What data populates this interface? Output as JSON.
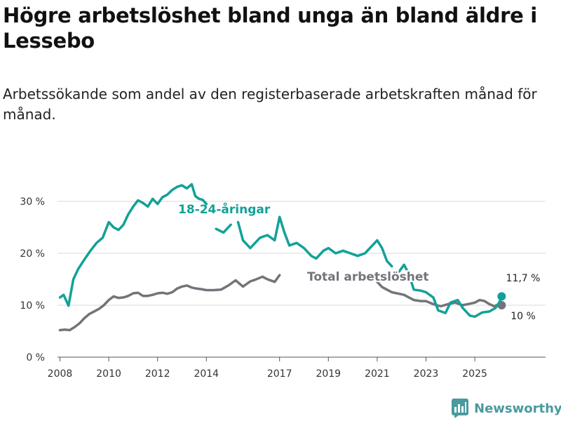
{
  "title": "Högre arbetslöshet bland unga än bland äldre i Lessebo",
  "subtitle": "Arbetssökande som andel av den registerbaserade arbetskraften månad för månad.",
  "brand": "Newsworthy",
  "colors": {
    "youth": "#12a198",
    "total": "#74737a",
    "grid": "#d9d9d9",
    "axis": "#555555",
    "brand": "#4a9a9e"
  },
  "chart_data": {
    "type": "line",
    "title": "Högre arbetslöshet bland unga än bland äldre i Lessebo",
    "subtitle": "Arbetssökande som andel av den registerbaserade arbetskraften månad för månad.",
    "xlabel": "",
    "ylabel": "",
    "xlim": [
      2007.9,
      2027.9
    ],
    "ylim": [
      0,
      35
    ],
    "y_ticks": [
      0,
      10,
      20,
      30
    ],
    "y_tick_labels": [
      "0 %",
      "10 %",
      "20 %",
      "30 %"
    ],
    "x_ticks": [
      2008,
      2010,
      2012,
      2014,
      2017,
      2019,
      2021,
      2023,
      2025
    ],
    "x_tick_labels": [
      "2008",
      "2010",
      "2012",
      "2014",
      "2017",
      "2019",
      "2021",
      "2023",
      "2025"
    ],
    "grid": true,
    "series": [
      {
        "name": "18-24-åringar",
        "label": "18-24-åringar",
        "end_label": "11,7 %",
        "end_value": 11.7,
        "points": [
          [
            2008.0,
            11.5
          ],
          [
            2008.15,
            12.0
          ],
          [
            2008.35,
            9.9
          ],
          [
            2008.55,
            15.0
          ],
          [
            2008.75,
            17.0
          ],
          [
            2009.0,
            18.8
          ],
          [
            2009.25,
            20.5
          ],
          [
            2009.5,
            22.0
          ],
          [
            2009.75,
            23.0
          ],
          [
            2010.0,
            26.0
          ],
          [
            2010.2,
            25.0
          ],
          [
            2010.4,
            24.5
          ],
          [
            2010.6,
            25.5
          ],
          [
            2010.8,
            27.5
          ],
          [
            2011.0,
            29.0
          ],
          [
            2011.2,
            30.2
          ],
          [
            2011.4,
            29.7
          ],
          [
            2011.6,
            29.0
          ],
          [
            2011.8,
            30.5
          ],
          [
            2012.0,
            29.5
          ],
          [
            2012.2,
            30.8
          ],
          [
            2012.4,
            31.3
          ],
          [
            2012.6,
            32.2
          ],
          [
            2012.8,
            32.8
          ],
          [
            2013.0,
            33.1
          ],
          [
            2013.2,
            32.5
          ],
          [
            2013.4,
            33.3
          ],
          [
            2013.55,
            31.0
          ],
          [
            2013.7,
            30.5
          ],
          [
            2013.85,
            30.3
          ],
          [
            2014.0,
            29.5
          ],
          [
            null,
            null
          ],
          [
            2014.4,
            24.7
          ],
          [
            2014.7,
            24.0
          ],
          [
            2015.0,
            25.5
          ],
          [
            null,
            null
          ],
          [
            2015.3,
            26.0
          ],
          [
            2015.5,
            22.5
          ],
          [
            2015.8,
            21.0
          ],
          [
            2016.2,
            23.0
          ],
          [
            2016.5,
            23.5
          ],
          [
            2016.8,
            22.5
          ],
          [
            2017.0,
            27.0
          ],
          [
            2017.2,
            24.0
          ],
          [
            2017.4,
            21.5
          ],
          [
            2017.7,
            22.0
          ],
          [
            2018.0,
            21.0
          ],
          [
            2018.3,
            19.5
          ],
          [
            2018.5,
            19.0
          ],
          [
            2018.8,
            20.5
          ],
          [
            2019.0,
            21.0
          ],
          [
            2019.3,
            20.0
          ],
          [
            2019.6,
            20.5
          ],
          [
            2019.9,
            20.0
          ],
          [
            2020.2,
            19.5
          ],
          [
            2020.5,
            20.0
          ],
          [
            2020.8,
            21.5
          ],
          [
            2021.0,
            22.5
          ],
          [
            2021.2,
            21.0
          ],
          [
            2021.4,
            18.5
          ],
          [
            2021.6,
            17.5
          ],
          [
            null,
            null
          ],
          [
            2021.9,
            16.5
          ],
          [
            2022.1,
            17.8
          ],
          [
            2022.3,
            16.0
          ],
          [
            2022.5,
            13.0
          ],
          [
            2022.8,
            12.8
          ],
          [
            2023.0,
            12.5
          ],
          [
            2023.3,
            11.5
          ],
          [
            2023.5,
            9.0
          ],
          [
            2023.8,
            8.5
          ],
          [
            2024.0,
            10.5
          ],
          [
            2024.3,
            11.0
          ],
          [
            2024.5,
            9.5
          ],
          [
            2024.8,
            8.0
          ],
          [
            2025.0,
            7.8
          ],
          [
            2025.3,
            8.6
          ],
          [
            2025.6,
            8.8
          ],
          [
            2025.85,
            9.5
          ],
          [
            2026.0,
            10.5
          ],
          [
            2026.1,
            11.7
          ]
        ]
      },
      {
        "name": "Total arbetslöshet",
        "label": "Total arbetslöshet",
        "end_label": "10 %",
        "end_value": 10.0,
        "points": [
          [
            2008.0,
            5.2
          ],
          [
            2008.2,
            5.3
          ],
          [
            2008.4,
            5.2
          ],
          [
            2008.6,
            5.8
          ],
          [
            2008.8,
            6.5
          ],
          [
            2009.0,
            7.5
          ],
          [
            2009.2,
            8.3
          ],
          [
            2009.4,
            8.8
          ],
          [
            2009.6,
            9.3
          ],
          [
            2009.8,
            10.0
          ],
          [
            2010.0,
            11.0
          ],
          [
            2010.2,
            11.7
          ],
          [
            2010.4,
            11.4
          ],
          [
            2010.6,
            11.5
          ],
          [
            2010.8,
            11.8
          ],
          [
            2011.0,
            12.3
          ],
          [
            2011.2,
            12.4
          ],
          [
            2011.4,
            11.8
          ],
          [
            2011.6,
            11.8
          ],
          [
            2011.8,
            12.0
          ],
          [
            2012.0,
            12.3
          ],
          [
            2012.2,
            12.4
          ],
          [
            2012.4,
            12.2
          ],
          [
            2012.6,
            12.5
          ],
          [
            2012.8,
            13.2
          ],
          [
            2013.0,
            13.6
          ],
          [
            2013.2,
            13.8
          ],
          [
            2013.4,
            13.4
          ],
          [
            2013.6,
            13.2
          ],
          [
            2013.8,
            13.1
          ],
          [
            2014.0,
            12.9
          ],
          [
            2014.3,
            12.9
          ],
          [
            2014.6,
            13.0
          ],
          [
            2014.9,
            13.8
          ],
          [
            2015.2,
            14.8
          ],
          [
            2015.5,
            13.6
          ],
          [
            2015.8,
            14.6
          ],
          [
            2016.0,
            14.9
          ],
          [
            2016.3,
            15.5
          ],
          [
            2016.5,
            15.0
          ],
          [
            2016.8,
            14.5
          ],
          [
            2017.0,
            15.8
          ],
          [
            null,
            null
          ],
          [
            2021.0,
            14.5
          ],
          [
            2021.2,
            13.5
          ],
          [
            2021.4,
            13.0
          ],
          [
            2021.6,
            12.5
          ],
          [
            2021.9,
            12.2
          ],
          [
            2022.1,
            12.0
          ],
          [
            2022.3,
            11.5
          ],
          [
            2022.5,
            11.0
          ],
          [
            2022.8,
            10.8
          ],
          [
            2023.0,
            10.8
          ],
          [
            2023.3,
            10.2
          ],
          [
            2023.6,
            9.8
          ],
          [
            2023.9,
            10.2
          ],
          [
            2024.2,
            10.5
          ],
          [
            2024.5,
            10.0
          ],
          [
            2024.8,
            10.3
          ],
          [
            2025.0,
            10.5
          ],
          [
            2025.2,
            11.0
          ],
          [
            2025.4,
            10.8
          ],
          [
            2025.6,
            10.2
          ],
          [
            2025.8,
            9.8
          ],
          [
            2026.0,
            10.3
          ],
          [
            2026.1,
            10.0
          ]
        ]
      }
    ]
  }
}
